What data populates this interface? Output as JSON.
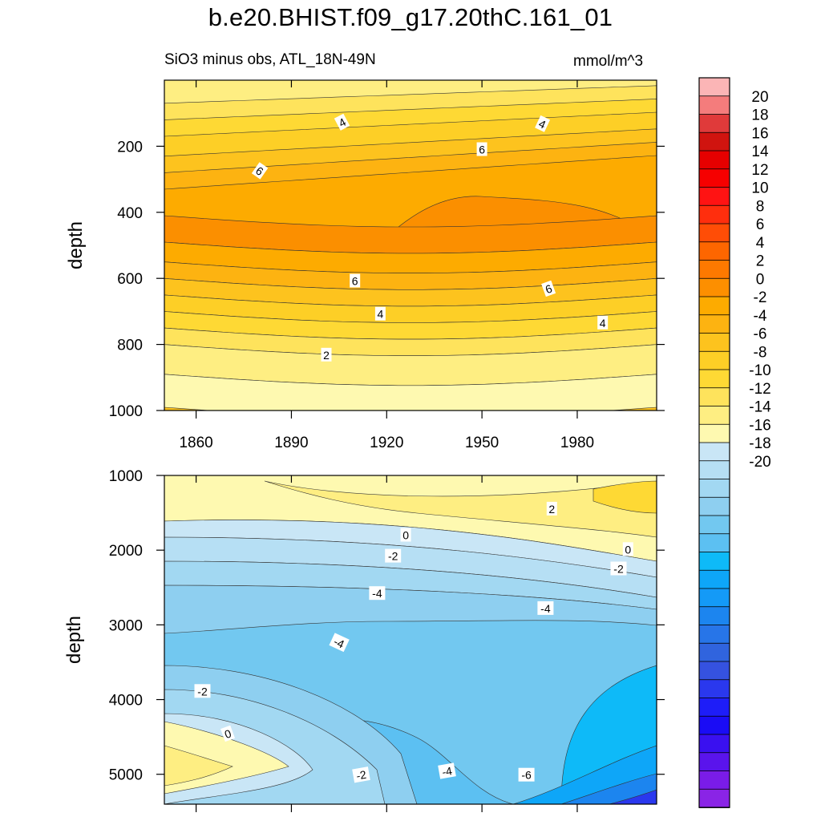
{
  "title": "b.e20.BHIST.f09_g17.20thC.161_01",
  "subtitle_left": "SiO3 minus obs, ATL_18N-49N",
  "subtitle_right": "mmol/m^3",
  "colors": {
    "contour_line": "#333333",
    "frame": "#000000",
    "label_box": "#ffffff"
  },
  "chart_data": [
    {
      "type": "heatmap",
      "panel": "upper",
      "ylabel": "depth",
      "ylim": [
        1000,
        0
      ],
      "xlim": [
        1850,
        2005
      ],
      "x_ticks": [
        1860,
        1890,
        1920,
        1950,
        1980
      ],
      "x_tick_labels": [
        "1860",
        "1890",
        "1920",
        "1950",
        "1980"
      ],
      "y_ticks": [
        200,
        400,
        600,
        800,
        1000
      ],
      "y_tick_labels": [
        "200",
        "400",
        "600",
        "800",
        "1000"
      ],
      "bands": [
        {
          "bottom_depth": 500,
          "value": 9,
          "color": "#fb8f00"
        },
        {
          "bottom_depth": 560,
          "value": 8,
          "color": "#fdab00"
        },
        {
          "bottom_depth": 610,
          "value": 7,
          "color": "#fdb311"
        },
        {
          "bottom_depth": 660,
          "value": 6,
          "color": "#fdc31e"
        },
        {
          "bottom_depth": 710,
          "value": 5,
          "color": "#fdcf26"
        },
        {
          "bottom_depth": 760,
          "value": 4,
          "color": "#fed934"
        },
        {
          "bottom_depth": 810,
          "value": 3,
          "color": "#fee35c"
        },
        {
          "bottom_depth": 900,
          "value": 2,
          "color": "#feee82"
        },
        {
          "bottom_depth": 1000,
          "value": 1,
          "color": "#fef9b0"
        }
      ],
      "top_bands": [
        {
          "top_depth": 0,
          "value": 2,
          "color": "#feee82"
        },
        {
          "top_depth": 70,
          "value": 3,
          "color": "#fee35c"
        },
        {
          "top_depth": 120,
          "value": 4,
          "color": "#fed934"
        },
        {
          "top_depth": 170,
          "value": 5,
          "color": "#fdcf26"
        },
        {
          "top_depth": 230,
          "value": 6,
          "color": "#fdc31e"
        },
        {
          "top_depth": 280,
          "value": 7,
          "color": "#fdb311"
        },
        {
          "top_depth": 330,
          "value": 8,
          "color": "#fdab00"
        }
      ],
      "contour_labels": [
        {
          "text": "4",
          "x": 1906,
          "y": 128,
          "angle": -28
        },
        {
          "text": "4",
          "x": 1969,
          "y": 133,
          "angle": 25
        },
        {
          "text": "6",
          "x": 1880,
          "y": 275,
          "angle": 35
        },
        {
          "text": "6",
          "x": 1950,
          "y": 210,
          "angle": 0
        },
        {
          "text": "6",
          "x": 1910,
          "y": 608,
          "angle": 0
        },
        {
          "text": "6",
          "x": 1971,
          "y": 632,
          "angle": -20
        },
        {
          "text": "4",
          "x": 1918,
          "y": 708,
          "angle": 0
        },
        {
          "text": "4",
          "x": 1988,
          "y": 735,
          "angle": 0
        },
        {
          "text": "2",
          "x": 1901,
          "y": 832,
          "angle": 0
        }
      ]
    },
    {
      "type": "heatmap",
      "panel": "lower",
      "ylabel": "depth",
      "ylim": [
        5400,
        1000
      ],
      "xlim": [
        1850,
        2005
      ],
      "x_ticks": [
        1860,
        1890,
        1920,
        1950,
        1980
      ],
      "x_tick_labels": [],
      "y_ticks": [
        1000,
        2000,
        3000,
        4000,
        5000
      ],
      "y_tick_labels": [
        "1000",
        "2000",
        "3000",
        "4000",
        "5000"
      ],
      "contour_labels": [
        {
          "text": "2",
          "x": 1972,
          "y": 1450,
          "angle": 0
        },
        {
          "text": "0",
          "x": 1926,
          "y": 1800,
          "angle": 0
        },
        {
          "text": "0",
          "x": 1996,
          "y": 1990,
          "angle": 0
        },
        {
          "text": "-2",
          "x": 1922,
          "y": 2080,
          "angle": 0
        },
        {
          "text": "-2",
          "x": 1993,
          "y": 2250,
          "angle": 0
        },
        {
          "text": "-4",
          "x": 1917,
          "y": 2580,
          "angle": 0
        },
        {
          "text": "-4",
          "x": 1970,
          "y": 2780,
          "angle": 0
        },
        {
          "text": "-4",
          "x": 1905,
          "y": 3240,
          "angle": 25
        },
        {
          "text": "-2",
          "x": 1862,
          "y": 3890,
          "angle": 0
        },
        {
          "text": "0",
          "x": 1870,
          "y": 4460,
          "angle": -20
        },
        {
          "text": "-2",
          "x": 1912,
          "y": 5010,
          "angle": -10
        },
        {
          "text": "-4",
          "x": 1939,
          "y": 4960,
          "angle": -10
        },
        {
          "text": "-6",
          "x": 1964,
          "y": 5010,
          "angle": 0
        }
      ]
    }
  ],
  "colorbar": {
    "labels": [
      "20",
      "18",
      "16",
      "14",
      "12",
      "10",
      "8",
      "6",
      "4",
      "2",
      "0",
      "-2",
      "-4",
      "-6",
      "-8",
      "-10",
      "-12",
      "-14",
      "-16",
      "-18",
      "-20"
    ],
    "colors": [
      "#fbb5b6",
      "#f47c7c",
      "#e03a3a",
      "#d0140f",
      "#e60000",
      "#f60000",
      "#ff1313",
      "#ff2e0d",
      "#ff4d06",
      "#fd6600",
      "#fd7900",
      "#fd8f00",
      "#fdab00",
      "#fdb311",
      "#fdc31e",
      "#fdcf26",
      "#fed934",
      "#fee35c",
      "#feee82",
      "#fef9b0",
      "#c9e6f6",
      "#b6dff4",
      "#a2d8f2",
      "#8ecff0",
      "#72c8f0",
      "#5cc0f2",
      "#0ebaf8",
      "#0ea6f8",
      "#149af7",
      "#1c85ef",
      "#2775e8",
      "#3064de",
      "#3552e0",
      "#2a38ee",
      "#1e1df8",
      "#1a0cf5",
      "#3a10f0",
      "#5a14ec",
      "#7a1ce8",
      "#8a24e6"
    ]
  }
}
